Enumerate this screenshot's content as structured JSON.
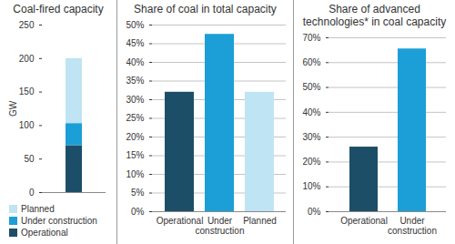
{
  "chart_data": [
    {
      "type": "bar",
      "title": "Coal-fired capacity",
      "ylabel": "GW",
      "categories": [
        null
      ],
      "series": [
        {
          "name": "Operational",
          "color": "#1d4e68",
          "values": [
            70
          ]
        },
        {
          "name": "Under construction",
          "color": "#1b9fd6",
          "values": [
            33
          ]
        },
        {
          "name": "Planned",
          "color": "#bfe4f4",
          "values": [
            97
          ]
        }
      ],
      "stacked": true,
      "ylim": [
        0,
        250
      ],
      "yticks": [
        0,
        50,
        100,
        150,
        200,
        250
      ],
      "grid": false,
      "legend": "bottom",
      "tick_labels": "y"
    },
    {
      "type": "bar",
      "title": "Share of coal in total capacity",
      "categories": [
        "Operational",
        "Under construction",
        "Planned"
      ],
      "values": [
        32,
        47.5,
        32
      ],
      "colors": [
        "#1d4e68",
        "#1b9fd6",
        "#bfe4f4"
      ],
      "ylim": [
        0,
        50
      ],
      "yticks": [
        {
          "value": 0,
          "label": "0%"
        },
        {
          "value": 5,
          "label": "5%"
        },
        {
          "value": 10,
          "label": "10%"
        },
        {
          "value": 15,
          "label": "15%"
        },
        {
          "value": 20,
          "label": "20%"
        },
        {
          "value": 25,
          "label": "25%"
        },
        {
          "value": 30,
          "label": "30%"
        },
        {
          "value": 35,
          "label": "35%"
        },
        {
          "value": 40,
          "label": "40%"
        },
        {
          "value": 45,
          "label": "45%"
        },
        {
          "value": 50,
          "label": "50%"
        }
      ],
      "grid": true
    },
    {
      "type": "bar",
      "title": "Share of advanced technologies* in coal capacity",
      "categories": [
        "Operational",
        "Under construction"
      ],
      "values": [
        26,
        65.5
      ],
      "colors": [
        "#1d4e68",
        "#1b9fd6"
      ],
      "ylim": [
        0,
        70
      ],
      "yticks": [
        {
          "value": 0,
          "label": "0%"
        },
        {
          "value": 10,
          "label": "10%"
        },
        {
          "value": 20,
          "label": "20%"
        },
        {
          "value": 30,
          "label": "30%"
        },
        {
          "value": 40,
          "label": "40%"
        },
        {
          "value": 50,
          "label": "50%"
        },
        {
          "value": 60,
          "label": "60%"
        },
        {
          "value": 70,
          "label": "70%"
        }
      ],
      "grid": true
    }
  ]
}
